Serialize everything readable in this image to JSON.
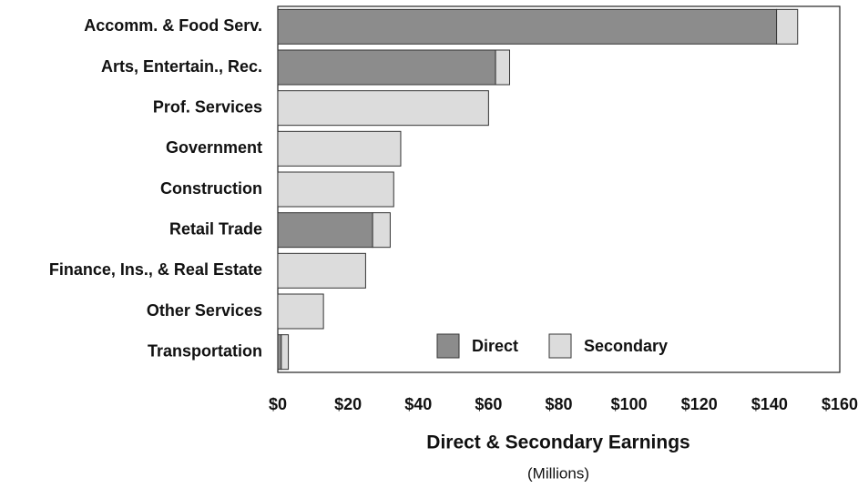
{
  "chart_data": {
    "type": "stacked-bar-horizontal",
    "xlabel": "Direct & Secondary Earnings",
    "xlabel_sub": "(Millions)",
    "categories": [
      "Accomm. & Food Serv.",
      "Arts, Entertain., Rec.",
      "Prof. Services",
      "Government",
      "Construction",
      "Retail Trade",
      "Finance, Ins., & Real Estate",
      "Other Services",
      "Transportation"
    ],
    "series": [
      {
        "name": "Direct",
        "color": "#8c8c8c",
        "values": [
          142,
          62,
          0,
          0,
          0,
          27,
          0,
          0,
          1
        ]
      },
      {
        "name": "Secondary",
        "color": "#dcdcdc",
        "values": [
          6,
          4,
          60,
          35,
          33,
          5,
          25,
          13,
          2
        ]
      }
    ],
    "xlim": [
      0,
      160
    ],
    "xticks": [
      {
        "value": 0,
        "label": "$0"
      },
      {
        "value": 20,
        "label": "$20"
      },
      {
        "value": 40,
        "label": "$40"
      },
      {
        "value": 60,
        "label": "$60"
      },
      {
        "value": 80,
        "label": "$80"
      },
      {
        "value": 100,
        "label": "$100"
      },
      {
        "value": 120,
        "label": "$120"
      },
      {
        "value": 140,
        "label": "$140"
      },
      {
        "value": 160,
        "label": "$160"
      }
    ],
    "grid": false,
    "legend": "bottom"
  }
}
